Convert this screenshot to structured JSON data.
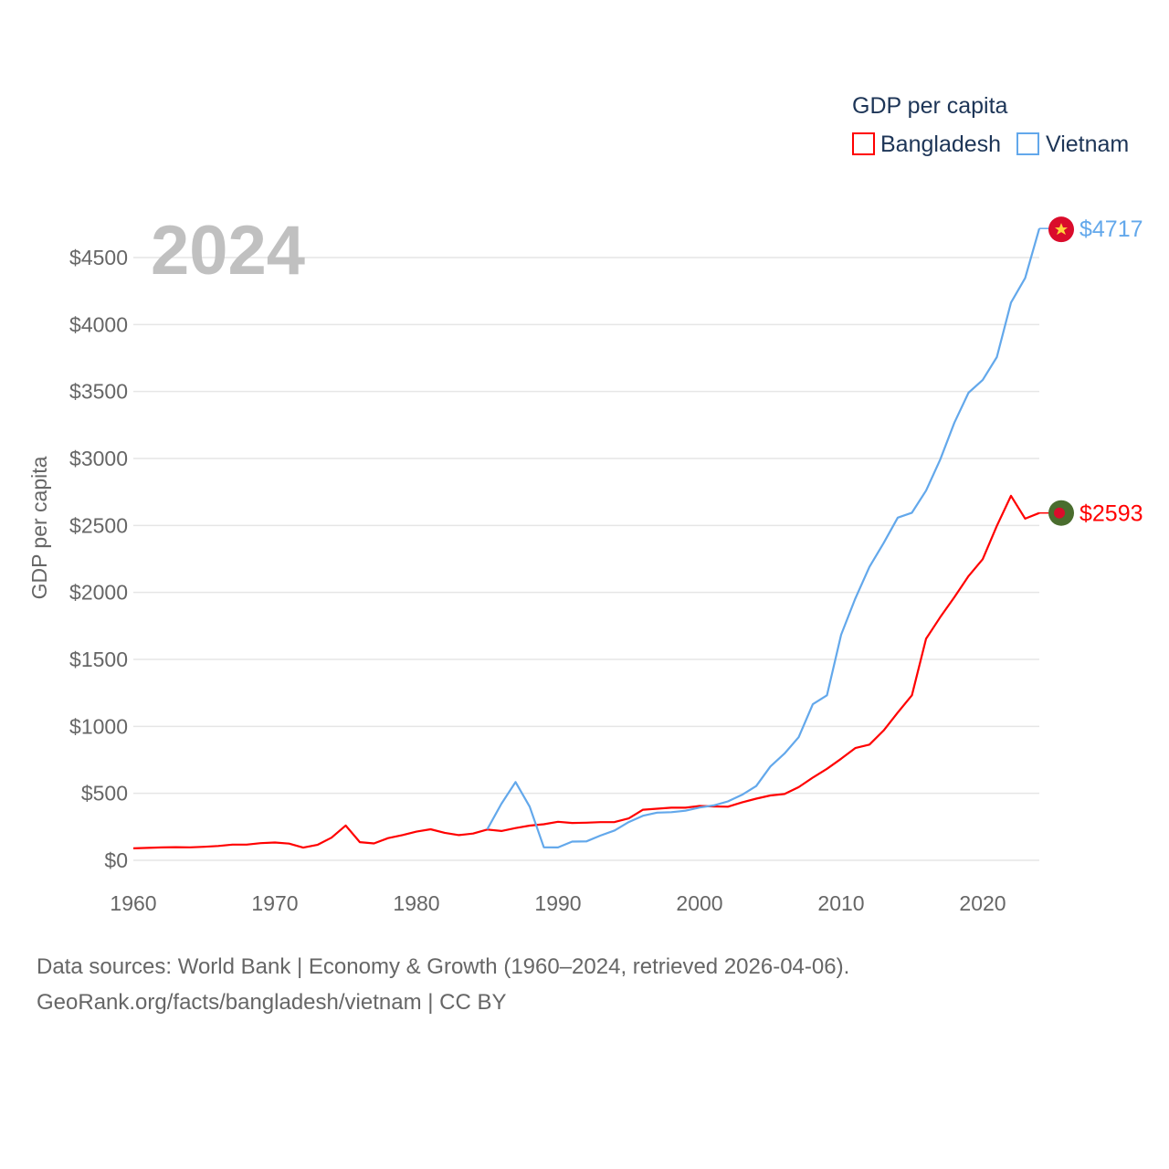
{
  "chart_data": {
    "type": "line",
    "title": "2024",
    "xlabel": "",
    "ylabel": "GDP per capita",
    "legend_title": "GDP per capita",
    "legend_position": "top-right",
    "xlim": [
      1960,
      2024
    ],
    "ylim": [
      0,
      4500
    ],
    "xticks": [
      1960,
      1970,
      1980,
      1990,
      2000,
      2010,
      2020
    ],
    "yticks": [
      0,
      500,
      1000,
      1500,
      2000,
      2500,
      3000,
      3500,
      4000,
      4500
    ],
    "ytick_labels": [
      "$0",
      "$500",
      "$1000",
      "$1500",
      "$2000",
      "$2500",
      "$3000",
      "$3500",
      "$4000",
      "$4500"
    ],
    "grid": true,
    "series": [
      {
        "name": "Bangladesh",
        "color": "#ff0000",
        "end_label": "$2593",
        "flag": "bangladesh-flag",
        "start_year": 1960,
        "values": [
          89,
          93,
          96,
          98,
          97,
          101,
          107,
          117,
          117,
          128,
          133,
          125,
          95,
          115,
          169,
          260,
          136,
          126,
          166,
          188,
          214,
          232,
          205,
          188,
          200,
          230,
          219,
          241,
          259,
          269,
          288,
          279,
          281,
          285,
          286,
          313,
          378,
          385,
          393,
          393,
          406,
          402,
          400,
          432,
          460,
          484,
          495,
          546,
          618,
          683,
          758,
          838,
          864,
          969,
          1103,
          1232,
          1654,
          1815,
          1964,
          2122,
          2248,
          2497,
          2721,
          2551,
          2593
        ]
      },
      {
        "name": "Vietnam",
        "color": "#63a8eb",
        "end_label": "$4717",
        "flag": "vietnam-flag",
        "start_year": 1985,
        "values": [
          231,
          422,
          584,
          400,
          97,
          96,
          140,
          141,
          185,
          223,
          286,
          333,
          356,
          359,
          370,
          394,
          410,
          440,
          489,
          554,
          700,
          797,
          919,
          1165,
          1232,
          1684,
          1954,
          2191,
          2368,
          2558,
          2595,
          2760,
          2992,
          3267,
          3491,
          3586,
          3757,
          4164,
          4347,
          4717
        ]
      }
    ]
  },
  "footer": {
    "line1": "Data sources: World Bank | Economy & Growth (1960–2024, retrieved 2026-04-06).",
    "line2": "GeoRank.org/facts/bangladesh/vietnam | CC BY"
  }
}
